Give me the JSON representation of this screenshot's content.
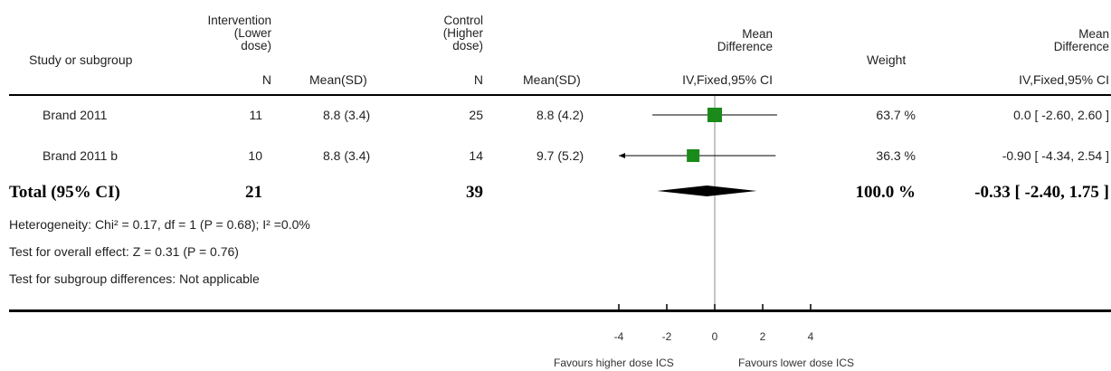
{
  "header": {
    "study": "Study or subgroup",
    "intervention": [
      "Intervention",
      "(Lower",
      "dose)"
    ],
    "control": [
      "Control",
      "(Higher",
      "dose)"
    ],
    "md": [
      "Mean",
      "Difference"
    ],
    "weight": "Weight",
    "md2": [
      "Mean",
      "Difference"
    ],
    "n1": "N",
    "meansd1": "Mean(SD)",
    "n2": "N",
    "meansd2": "Mean(SD)",
    "method1": "IV,Fixed,95% CI",
    "method2": "IV,Fixed,95% CI"
  },
  "rows": [
    {
      "study": "Brand 2011",
      "n1": "11",
      "m1": "8.8 (3.4)",
      "n2": "25",
      "m2": "8.8 (4.2)",
      "weight": "63.7 %",
      "ci": "0.0 [ -2.60, 2.60 ]"
    },
    {
      "study": "Brand 2011 b",
      "n1": "10",
      "m1": "8.8 (3.4)",
      "n2": "14",
      "m2": "9.7 (5.2)",
      "weight": "36.3 %",
      "ci": "-0.90 [ -4.34, 2.54 ]"
    }
  ],
  "total": {
    "label": "Total (95% CI)",
    "n1": "21",
    "n2": "39",
    "weight": "100.0 %",
    "ci": "-0.33 [ -2.40, 1.75 ]"
  },
  "footnotes": {
    "heterogeneity": "Heterogeneity: Chi² = 0.17, df = 1 (P = 0.68); I² =0.0%",
    "overall": "Test for overall effect: Z = 0.31 (P = 0.76)",
    "subgroup": "Test for subgroup differences: Not applicable"
  },
  "axis": {
    "favours_left": "Favours higher dose ICS",
    "favours_right": "Favours lower dose ICS"
  },
  "chart_data": {
    "type": "forest",
    "xlim": [
      -4,
      4
    ],
    "ticks": [
      -4,
      -2,
      0,
      2,
      4
    ],
    "studies": [
      {
        "name": "Brand 2011",
        "md": 0.0,
        "lo": -2.6,
        "hi": 2.6,
        "weight": 63.7
      },
      {
        "name": "Brand 2011 b",
        "md": -0.9,
        "lo": -4.34,
        "hi": 2.54,
        "weight": 36.3
      }
    ],
    "pooled": {
      "md": -0.33,
      "lo": -2.4,
      "hi": 1.75
    },
    "colors": {
      "square": "#1a8a1a",
      "diamond": "#000000"
    }
  }
}
